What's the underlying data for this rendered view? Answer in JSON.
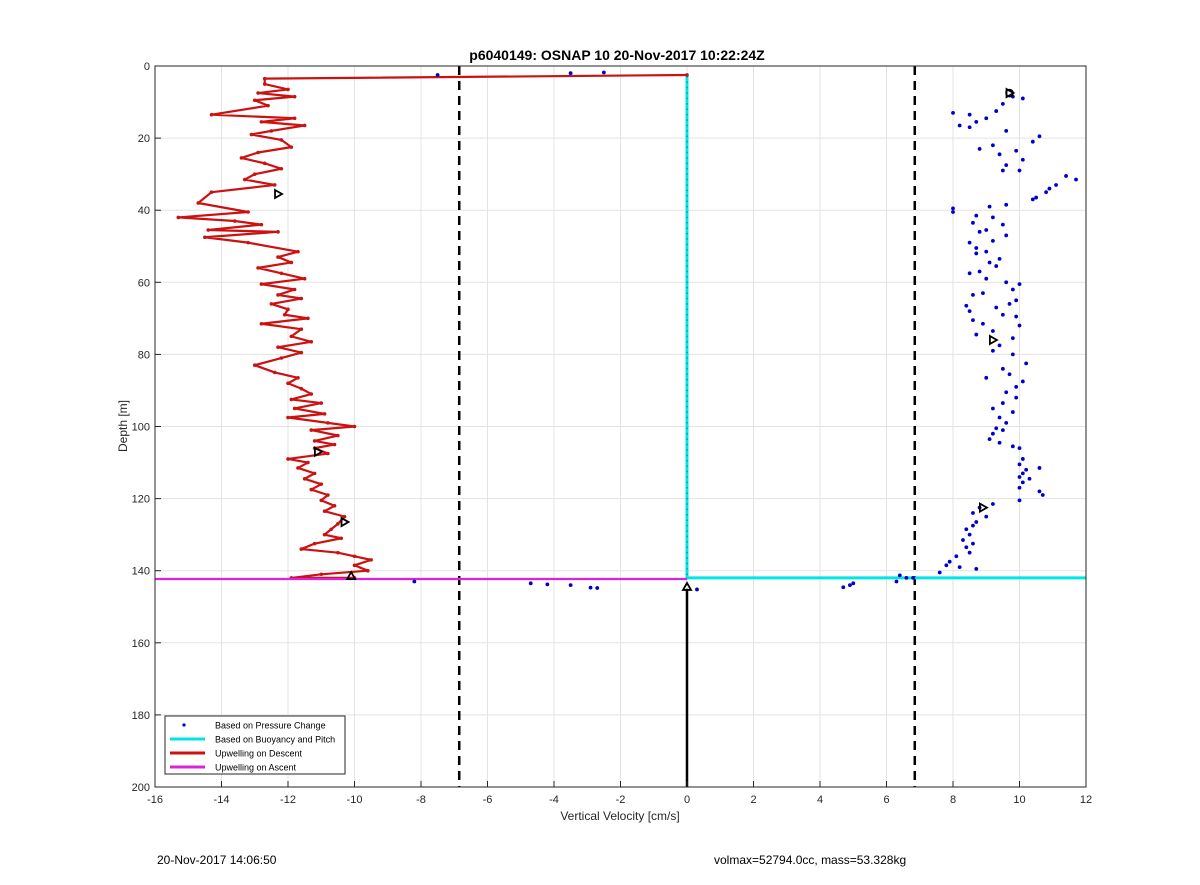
{
  "footer": {
    "timestamp": "20-Nov-2017 14:06:50",
    "info": "volmax=52794.0cc, mass=53.328kg"
  },
  "chart_data": {
    "type": "line",
    "title": "p6040149: OSNAP 10 20-Nov-2017 10:22:24Z",
    "xlabel": "Vertical Velocity [cm/s]",
    "ylabel": "Depth [m]",
    "xlim": [
      -16,
      12
    ],
    "ylim": [
      0,
      200
    ],
    "y_reversed": true,
    "grid": true,
    "xticks": [
      -16,
      -14,
      -12,
      -10,
      -8,
      -6,
      -4,
      -2,
      0,
      2,
      4,
      6,
      8,
      10,
      12
    ],
    "yticks": [
      0,
      20,
      40,
      60,
      80,
      100,
      120,
      140,
      160,
      180,
      200
    ],
    "legend_position": "bottom-left",
    "colors": {
      "pressure": "#0000cc",
      "buoyancy": "#00e5e5",
      "descent": "#cc1111",
      "ascent": "#dd22dd",
      "reference": "#000000",
      "grid": "#e3e3e3"
    },
    "series": [
      {
        "name": "Based on Pressure Change",
        "style": "dots",
        "points": [
          [
            -7.5,
            2.5
          ],
          [
            -3.5,
            2
          ],
          [
            -2.5,
            1.8
          ],
          [
            9.8,
            8.5
          ],
          [
            10.1,
            9
          ],
          [
            9.5,
            10.5
          ],
          [
            9.3,
            12.5
          ],
          [
            8.0,
            13
          ],
          [
            8.5,
            13.5
          ],
          [
            9.0,
            14.5
          ],
          [
            8.7,
            15.5
          ],
          [
            8.2,
            16.5
          ],
          [
            8.5,
            17
          ],
          [
            9.6,
            18
          ],
          [
            10.6,
            19.5
          ],
          [
            10.4,
            21
          ],
          [
            9.2,
            22
          ],
          [
            8.8,
            23
          ],
          [
            9.9,
            23.5
          ],
          [
            9.4,
            24.5
          ],
          [
            10.1,
            26
          ],
          [
            9.6,
            27.5
          ],
          [
            9.5,
            29
          ],
          [
            10.0,
            29
          ],
          [
            11.4,
            30.5
          ],
          [
            11.7,
            31.5
          ],
          [
            11.1,
            33
          ],
          [
            10.9,
            34
          ],
          [
            10.8,
            35
          ],
          [
            10.5,
            36.5
          ],
          [
            10.4,
            37
          ],
          [
            9.6,
            38.5
          ],
          [
            9.1,
            39
          ],
          [
            8.0,
            39.5
          ],
          [
            8.0,
            40.5
          ],
          [
            8.7,
            41.5
          ],
          [
            9.2,
            42
          ],
          [
            8.6,
            43.5
          ],
          [
            9.5,
            44
          ],
          [
            9.0,
            45.5
          ],
          [
            8.8,
            46
          ],
          [
            9.6,
            47
          ],
          [
            9.2,
            48.5
          ],
          [
            8.5,
            49
          ],
          [
            8.7,
            50.5
          ],
          [
            9.0,
            51.5
          ],
          [
            8.7,
            52
          ],
          [
            9.4,
            53.5
          ],
          [
            9.1,
            54.5
          ],
          [
            9.3,
            55.5
          ],
          [
            8.8,
            57
          ],
          [
            8.5,
            57.5
          ],
          [
            9.0,
            59
          ],
          [
            9.6,
            60
          ],
          [
            10.0,
            60.5
          ],
          [
            9.8,
            62
          ],
          [
            8.9,
            63
          ],
          [
            8.6,
            63.5
          ],
          [
            9.9,
            65
          ],
          [
            9.7,
            66
          ],
          [
            8.4,
            66.5
          ],
          [
            9.3,
            67
          ],
          [
            8.5,
            68
          ],
          [
            9.5,
            69
          ],
          [
            9.9,
            69.5
          ],
          [
            8.6,
            70.5
          ],
          [
            8.9,
            71.5
          ],
          [
            10.0,
            72
          ],
          [
            9.2,
            73.5
          ],
          [
            8.7,
            74.5
          ],
          [
            9.8,
            75.5
          ],
          [
            9.4,
            77.5
          ],
          [
            9.2,
            79
          ],
          [
            9.8,
            80
          ],
          [
            10.2,
            82.5
          ],
          [
            9.5,
            84
          ],
          [
            9.7,
            85.5
          ],
          [
            9.0,
            86.5
          ],
          [
            10.1,
            87.5
          ],
          [
            9.9,
            89
          ],
          [
            9.6,
            90.5
          ],
          [
            9.9,
            92
          ],
          [
            9.5,
            93.5
          ],
          [
            9.2,
            95
          ],
          [
            9.8,
            96
          ],
          [
            9.4,
            97.5
          ],
          [
            9.6,
            99
          ],
          [
            9.3,
            100.5
          ],
          [
            9.5,
            101
          ],
          [
            9.2,
            102
          ],
          [
            9.1,
            103.5
          ],
          [
            9.4,
            104.5
          ],
          [
            9.8,
            105.5
          ],
          [
            10.0,
            106
          ],
          [
            10.1,
            109
          ],
          [
            10.0,
            110.5
          ],
          [
            10.2,
            112
          ],
          [
            10.6,
            111.5
          ],
          [
            10.1,
            113
          ],
          [
            10.0,
            114
          ],
          [
            10.3,
            114.5
          ],
          [
            10.1,
            115.5
          ],
          [
            10.0,
            117
          ],
          [
            10.6,
            118
          ],
          [
            10.7,
            119
          ],
          [
            10.0,
            120.5
          ],
          [
            9.2,
            121.5
          ],
          [
            8.8,
            122.5
          ],
          [
            8.6,
            124
          ],
          [
            9.0,
            125
          ],
          [
            8.7,
            126.5
          ],
          [
            8.6,
            127.5
          ],
          [
            8.4,
            128.5
          ],
          [
            8.5,
            130
          ],
          [
            8.3,
            131.5
          ],
          [
            8.6,
            132.5
          ],
          [
            8.4,
            133.5
          ],
          [
            8.5,
            135
          ],
          [
            8.1,
            136
          ],
          [
            7.9,
            137.5
          ],
          [
            7.8,
            138.5
          ],
          [
            8.2,
            139
          ],
          [
            7.6,
            140.5
          ],
          [
            8.7,
            139.5
          ],
          [
            -8.2,
            143
          ],
          [
            -4.7,
            143.5
          ],
          [
            -4.2,
            143.8
          ],
          [
            -3.5,
            144
          ],
          [
            -2.9,
            144.7
          ],
          [
            -2.7,
            144.8
          ],
          [
            0.3,
            145.2
          ],
          [
            6.4,
            141.3
          ],
          [
            6.6,
            142
          ],
          [
            6.8,
            142
          ],
          [
            6.3,
            143
          ],
          [
            5.0,
            143.5
          ],
          [
            4.9,
            144
          ],
          [
            4.7,
            144.6
          ]
        ]
      },
      {
        "name": "Based on Buoyancy and Pitch",
        "style": "line",
        "points": [
          [
            0,
            2
          ],
          [
            0,
            142
          ],
          [
            12,
            142
          ]
        ]
      },
      {
        "name": "Upwelling on Descent",
        "style": "line",
        "points": [
          [
            0,
            2.5
          ],
          [
            -12.7,
            3.5
          ],
          [
            -12.7,
            5
          ],
          [
            -12.0,
            6.5
          ],
          [
            -12.9,
            7.5
          ],
          [
            -11.8,
            8.5
          ],
          [
            -13.0,
            9.5
          ],
          [
            -12.6,
            11
          ],
          [
            -14.3,
            13.5
          ],
          [
            -11.8,
            14.5
          ],
          [
            -12.8,
            15.5
          ],
          [
            -11.5,
            16.5
          ],
          [
            -12.5,
            18
          ],
          [
            -13.1,
            19
          ],
          [
            -12.2,
            20.5
          ],
          [
            -11.9,
            22.5
          ],
          [
            -12.9,
            24
          ],
          [
            -13.4,
            25.5
          ],
          [
            -12.7,
            27
          ],
          [
            -12.2,
            28.5
          ],
          [
            -13.0,
            30
          ],
          [
            -13.3,
            31.5
          ],
          [
            -12.4,
            33
          ],
          [
            -14.3,
            35
          ],
          [
            -14.7,
            38
          ],
          [
            -13.2,
            40.5
          ],
          [
            -15.3,
            42
          ],
          [
            -13.6,
            43
          ],
          [
            -12.8,
            44
          ],
          [
            -14.4,
            45.5
          ],
          [
            -12.3,
            46
          ],
          [
            -14.5,
            47.5
          ],
          [
            -13.2,
            49
          ],
          [
            -11.7,
            51.5
          ],
          [
            -12.3,
            53
          ],
          [
            -11.9,
            54.5
          ],
          [
            -12.9,
            56
          ],
          [
            -12.2,
            57.5
          ],
          [
            -11.5,
            59
          ],
          [
            -12.8,
            60.5
          ],
          [
            -11.8,
            62
          ],
          [
            -12.3,
            63.5
          ],
          [
            -11.6,
            64.5
          ],
          [
            -12.5,
            66
          ],
          [
            -12.0,
            67.5
          ],
          [
            -12.1,
            69
          ],
          [
            -11.4,
            70
          ],
          [
            -12.8,
            71.5
          ],
          [
            -11.6,
            73
          ],
          [
            -11.9,
            75
          ],
          [
            -11.3,
            76.5
          ],
          [
            -12.3,
            78
          ],
          [
            -11.6,
            79.5
          ],
          [
            -12.2,
            81
          ],
          [
            -13.0,
            83
          ],
          [
            -12.4,
            85
          ],
          [
            -11.7,
            86.5
          ],
          [
            -12.0,
            88
          ],
          [
            -11.6,
            89.5
          ],
          [
            -11.3,
            91
          ],
          [
            -11.9,
            92.5
          ],
          [
            -11.0,
            93.5
          ],
          [
            -11.8,
            95
          ],
          [
            -10.9,
            96.5
          ],
          [
            -12.0,
            97.5
          ],
          [
            -10.8,
            99
          ],
          [
            -10.0,
            100
          ],
          [
            -11.3,
            101
          ],
          [
            -10.5,
            102.5
          ],
          [
            -11.2,
            104
          ],
          [
            -10.6,
            105
          ],
          [
            -11.2,
            106
          ],
          [
            -10.8,
            107.5
          ],
          [
            -12.0,
            109
          ],
          [
            -11.4,
            110
          ],
          [
            -11.7,
            111.5
          ],
          [
            -11.2,
            113
          ],
          [
            -11.5,
            114.5
          ],
          [
            -11.0,
            116
          ],
          [
            -11.3,
            117.5
          ],
          [
            -10.8,
            119
          ],
          [
            -11.0,
            120.5
          ],
          [
            -10.6,
            122
          ],
          [
            -10.9,
            123.5
          ],
          [
            -10.3,
            125
          ],
          [
            -10.5,
            127
          ],
          [
            -10.7,
            128.5
          ],
          [
            -10.9,
            130
          ],
          [
            -10.4,
            131
          ],
          [
            -11.2,
            132.5
          ],
          [
            -11.6,
            134
          ],
          [
            -10.5,
            135
          ],
          [
            -10.0,
            136
          ],
          [
            -9.5,
            137
          ],
          [
            -10.0,
            138.5
          ],
          [
            -9.6,
            140
          ],
          [
            -11.0,
            141
          ],
          [
            -11.9,
            142
          ],
          [
            -10.0,
            142
          ]
        ]
      },
      {
        "name": "Upwelling on Ascent",
        "style": "line",
        "points": [
          [
            -16,
            142.3
          ],
          [
            0,
            142.3
          ]
        ]
      }
    ],
    "reference_lines": [
      {
        "axis": "x",
        "value": -6.85,
        "style": "dashed"
      },
      {
        "axis": "x",
        "value": 6.85,
        "style": "dashed"
      },
      {
        "axis": "x",
        "value": 0,
        "from": 145,
        "to": 200,
        "style": "solid"
      }
    ],
    "markers": [
      {
        "symbol": "triangle-right",
        "points": [
          [
            -12.3,
            35.5
          ],
          [
            -11.1,
            107
          ],
          [
            -10.3,
            126.5
          ],
          [
            8.9,
            122.5
          ],
          [
            9.2,
            76
          ],
          [
            9.7,
            7.5
          ]
        ]
      },
      {
        "symbol": "triangle-up",
        "points": [
          [
            -10.1,
            141.5
          ],
          [
            0,
            144.5
          ]
        ]
      },
      {
        "symbol": "circle",
        "points": [
          [
            9.7,
            7.5
          ]
        ]
      }
    ]
  }
}
